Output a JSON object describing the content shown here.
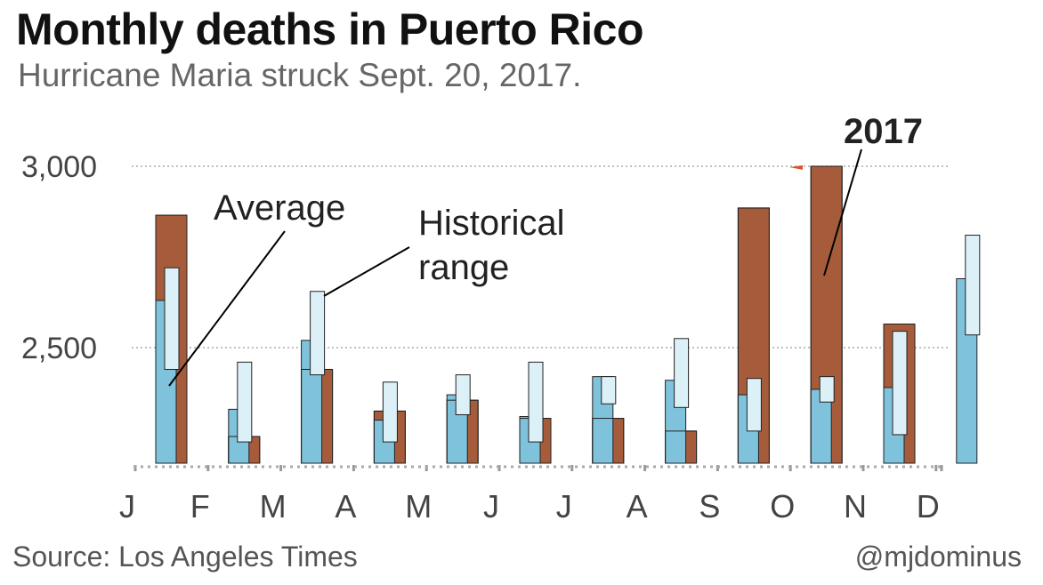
{
  "header": {
    "title": "Monthly deaths in Puerto Rico",
    "subtitle": "Hurricane Maria struck Sept. 20, 2017."
  },
  "footer": {
    "source": "Source: Los Angeles Times",
    "credit": "@mjdominus"
  },
  "colors": {
    "average": "#7fc2dc",
    "historical_range": "#dcf0f8",
    "year_2017": "#a65c3a",
    "outline": "#222222",
    "gridline": "#aaaaaa",
    "axis_text": "#444444",
    "title_text": "#111111"
  },
  "chart_data": {
    "type": "bar",
    "title": "Monthly deaths in Puerto Rico",
    "subtitle": "Hurricane Maria struck Sept. 20, 2017.",
    "categories": [
      "J",
      "F",
      "M",
      "A",
      "M",
      "J",
      "J",
      "A",
      "S",
      "O",
      "N",
      "D"
    ],
    "y_ticks": [
      3000,
      2500
    ],
    "y_tick_labels": [
      "3,000",
      "2,500"
    ],
    "ylim": [
      2180,
      3080
    ],
    "grid": true,
    "series": [
      {
        "name": "Average",
        "values": [
          2630,
          2330,
          2520,
          2300,
          2370,
          2310,
          2420,
          2410,
          2370,
          2385,
          2390,
          2690
        ]
      },
      {
        "name": "Historical range",
        "ranges": [
          [
            2440,
            2720
          ],
          [
            2240,
            2460
          ],
          [
            2425,
            2655
          ],
          [
            2240,
            2405
          ],
          [
            2315,
            2425
          ],
          [
            2240,
            2460
          ],
          [
            2345,
            2420
          ],
          [
            2335,
            2525
          ],
          [
            2270,
            2415
          ],
          [
            2350,
            2420
          ],
          [
            2260,
            2545
          ],
          [
            2535,
            2810
          ]
        ]
      },
      {
        "name": "2017",
        "values": [
          2865,
          2255,
          2440,
          2325,
          2355,
          2305,
          2305,
          2270,
          2885,
          3000,
          2565,
          null
        ]
      }
    ],
    "annotations": [
      {
        "text": "Average"
      },
      {
        "text": "Historical range",
        "lines": [
          "Historical",
          "range"
        ]
      },
      {
        "text": "2017"
      }
    ]
  }
}
